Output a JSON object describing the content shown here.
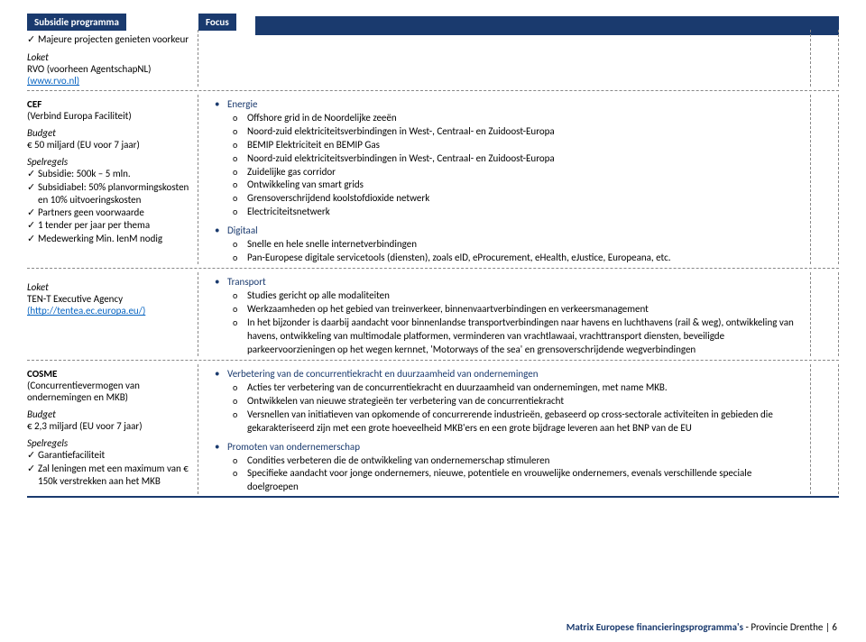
{
  "header": {
    "left": "Subsidie programma",
    "right": "Focus"
  },
  "row1": {
    "left_check": "Majeure projecten genieten voorkeur",
    "loket_hdr": "Loket",
    "loket_line1": "RVO (voorheen AgentschapNL)",
    "loket_link": "(www.rvo.nl)"
  },
  "row2": {
    "cef_title": "CEF",
    "cef_sub": "(Verbind Europa Faciliteit)",
    "budget_hdr": "Budget",
    "budget_val": "€ 50 miljard (EU voor 7 jaar)",
    "spel_hdr": "Spelregels",
    "spel_items": [
      "Subsidie: 500k – 5 mln.",
      "Subsidiabel: 50% planvormingskosten en 10% uitvoeringskosten",
      "Partners geen voorwaarde",
      "1 tender per jaar per thema",
      "Medewerking Min. IenM nodig"
    ],
    "energie_hdr": "Energie",
    "energie_items": [
      "Offshore grid in de Noordelijke zeeën",
      "Noord-zuid elektriciteitsverbindingen in West-, Centraal- en Zuidoost-Europa",
      "BEMIP Elektriciteit en BEMIP Gas",
      "Noord-zuid elektriciteitsverbindingen in West-, Centraal- en Zuidoost-Europa",
      "Zuidelijke gas corridor",
      "Ontwikkeling van smart grids",
      "Grensoverschrijdend koolstofdioxide netwerk",
      "Electriciteitsnetwerk"
    ],
    "digitaal_hdr": "Digitaal",
    "digitaal_items": [
      "Snelle en hele snelle internetverbindingen",
      "Pan-Europese digitale servicetools (diensten), zoals eID, eProcurement, eHealth, eJustice, Europeana, etc."
    ]
  },
  "row3": {
    "loket_hdr": "Loket",
    "loket_line1": "TEN-T Executive Agency",
    "loket_link": "(http://tentea.ec.europa.eu/)",
    "transport_hdr": "Transport",
    "transport_items": [
      "Studies gericht op alle modaliteiten",
      "Werkzaamheden op het gebied van treinverkeer, binnenvaartverbindingen en verkeersmanagement",
      "In het bijzonder is daarbij aandacht voor binnenlandse transportverbindingen naar havens en luchthavens (rail & weg), ontwikkeling van havens, ontwikkeling van multimodale platformen, verminderen van vrachtlawaai, vrachttransport diensten, beveiligde parkeervoorzieningen op het wegen kernnet, 'Motorways of the sea' en grensoverschrijdende wegverbindingen"
    ]
  },
  "row4": {
    "cosme_title": "COSME",
    "cosme_sub": "(Concurrentievermogen van ondernemingen en MKB)",
    "budget_hdr": "Budget",
    "budget_val": "€ 2,3 miljard (EU voor 7 jaar)",
    "spel_hdr": "Spelregels",
    "spel_items": [
      "Garantiefaciliteit",
      "Zal leningen met een maximum van € 150k verstrekken aan het MKB"
    ],
    "verbeter_hdr": "Verbetering van de concurrentiekracht en duurzaamheid van ondernemingen",
    "verbeter_items": [
      "Acties ter verbetering van de concurrentiekracht en duurzaamheid van ondernemingen, met name MKB.",
      "Ontwikkelen van nieuwe strategieën ter verbetering van de concurrentiekracht",
      "Versnellen van initiatieven van opkomende of concurrerende industrieën, gebaseerd op cross-sectorale activiteiten in gebieden die gekarakteriseerd zijn met een grote hoeveelheid MKB'ers en een grote bijdrage leveren aan het BNP van de EU"
    ],
    "promo_hdr": "Promoten van ondernemerschap",
    "promo_items": [
      "Condities verbeteren die de ontwikkeling van ondernemerschap stimuleren",
      "Specifieke aandacht voor jonge ondernemers, nieuwe, potentiele en vrouwelijke ondernemers, evenals verschillende speciale doelgroepen"
    ]
  },
  "footer": {
    "bold": "Matrix Europese financieringsprogramma's",
    "rest": " - Provincie Drenthe  |  6"
  }
}
